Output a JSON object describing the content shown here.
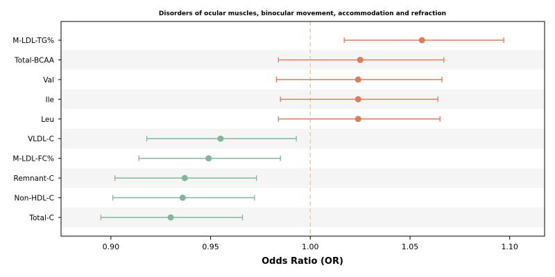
{
  "chart_data": {
    "type": "forest",
    "title": "Disorders of ocular muscles, binocular movement, accommodation and refraction",
    "xlabel": "Odds Ratio (OR)",
    "xlim": [
      0.875,
      1.1175
    ],
    "xticks": [
      0.9,
      0.95,
      1.0,
      1.05,
      1.1
    ],
    "xtick_labels": [
      "0.90",
      "0.95",
      "1.00",
      "1.05",
      "1.10"
    ],
    "reference_line": 1.0,
    "grid": false,
    "rows": [
      {
        "label": "M-LDL-TG%",
        "or": 1.056,
        "lower": 1.017,
        "upper": 1.097
      },
      {
        "label": "Total-BCAA",
        "or": 1.025,
        "lower": 0.984,
        "upper": 1.067
      },
      {
        "label": "Val",
        "or": 1.024,
        "lower": 0.983,
        "upper": 1.066
      },
      {
        "label": "Ile",
        "or": 1.024,
        "lower": 0.985,
        "upper": 1.064
      },
      {
        "label": "Leu",
        "or": 1.024,
        "lower": 0.984,
        "upper": 1.065
      },
      {
        "label": "VLDL-C",
        "or": 0.955,
        "lower": 0.918,
        "upper": 0.993
      },
      {
        "label": "M-LDL-FC%",
        "or": 0.949,
        "lower": 0.914,
        "upper": 0.985
      },
      {
        "label": "Remnant-C",
        "or": 0.937,
        "lower": 0.902,
        "upper": 0.973
      },
      {
        "label": "Non-HDL-C",
        "or": 0.936,
        "lower": 0.901,
        "upper": 0.972
      },
      {
        "label": "Total-C",
        "or": 0.93,
        "lower": 0.895,
        "upper": 0.966
      }
    ],
    "colors": {
      "above_one": "#e07b5a",
      "below_one": "#82b59b",
      "reference_line": "#f5c27a",
      "band": "#f5f5f5"
    }
  }
}
